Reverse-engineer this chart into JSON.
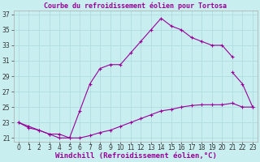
{
  "title": "Courbe du refroidissement éolien pour Tortosa",
  "xlabel": "Windchill (Refroidissement éolien,°C)",
  "bg_color": "#c8eef0",
  "grid_color": "#b0dde0",
  "line_color": "#990099",
  "xlim": [
    -0.5,
    23.5
  ],
  "ylim": [
    20.5,
    37.5
  ],
  "yticks": [
    21,
    23,
    25,
    27,
    29,
    31,
    33,
    35,
    37
  ],
  "xticks": [
    0,
    1,
    2,
    3,
    4,
    5,
    6,
    7,
    8,
    9,
    10,
    11,
    12,
    13,
    14,
    15,
    16,
    17,
    18,
    19,
    20,
    21,
    22,
    23
  ],
  "curve1_x": [
    0,
    1,
    2,
    3,
    4,
    5,
    6,
    7,
    8,
    9,
    10,
    11,
    12,
    13,
    14,
    15,
    16,
    17,
    18,
    19,
    20,
    21
  ],
  "curve1_y": [
    23,
    22.5,
    22,
    21.5,
    21,
    21,
    24.5,
    28,
    30,
    30.5,
    30.5,
    32,
    33.5,
    35,
    36.5,
    35.5,
    35,
    34,
    33.5,
    33,
    33,
    31.5
  ],
  "curve2_x": [
    0,
    1,
    2,
    3,
    4,
    5,
    6,
    7,
    8,
    9,
    10,
    11,
    12,
    13,
    14,
    15,
    16,
    17,
    18,
    19,
    20,
    21,
    22,
    23
  ],
  "curve2_y": [
    23,
    22.3,
    22,
    21.5,
    21.5,
    21,
    21,
    21.3,
    21.7,
    22,
    22.5,
    23,
    23.5,
    24,
    24.5,
    24.7,
    25,
    25.2,
    25.3,
    25.3,
    25.3,
    25.5,
    25,
    25
  ],
  "curve3_x": [
    21,
    22,
    23
  ],
  "curve3_y": [
    29.5,
    28,
    25
  ],
  "tick_fontsize": 5.5,
  "label_fontsize": 6.5,
  "title_fontsize": 6.0
}
